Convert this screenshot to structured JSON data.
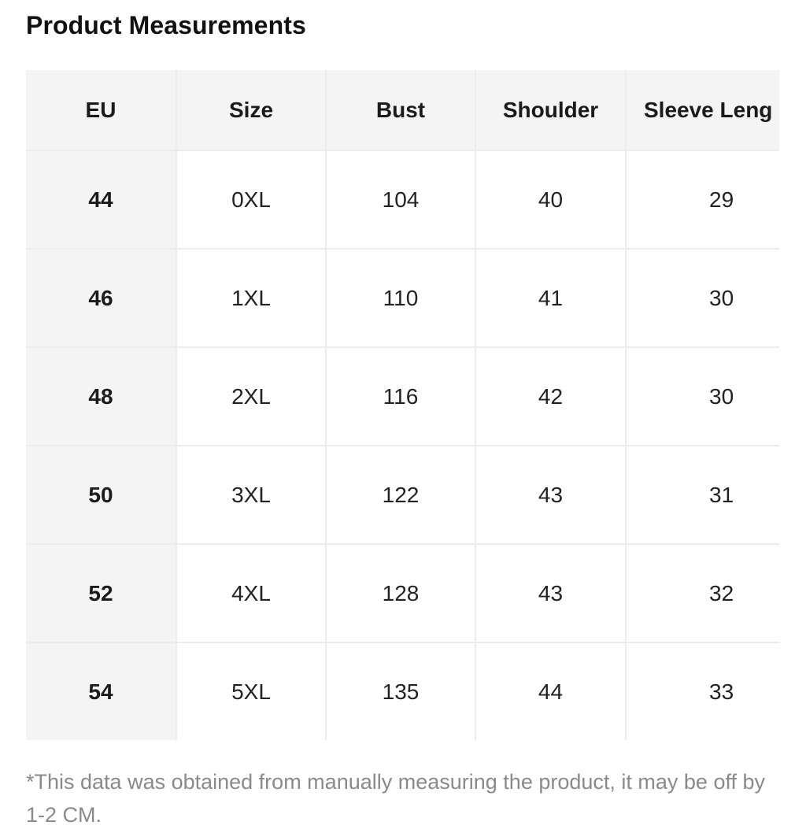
{
  "title": "Product Measurements",
  "table": {
    "headers": [
      "EU",
      "Size",
      "Bust",
      "Shoulder",
      "Sleeve Leng"
    ],
    "rows": [
      [
        "44",
        "0XL",
        "104",
        "40",
        "29"
      ],
      [
        "46",
        "1XL",
        "110",
        "41",
        "30"
      ],
      [
        "48",
        "2XL",
        "116",
        "42",
        "30"
      ],
      [
        "50",
        "3XL",
        "122",
        "43",
        "31"
      ],
      [
        "52",
        "4XL",
        "128",
        "43",
        "32"
      ],
      [
        "54",
        "5XL",
        "135",
        "44",
        "33"
      ]
    ]
  },
  "note": "*This data was obtained from manually measuring the product, it may be off by 1-2 CM.",
  "colors": {
    "header_bg": "#f4f4f4",
    "grid_line": "#ececec",
    "note_text": "#8a8a8a"
  }
}
